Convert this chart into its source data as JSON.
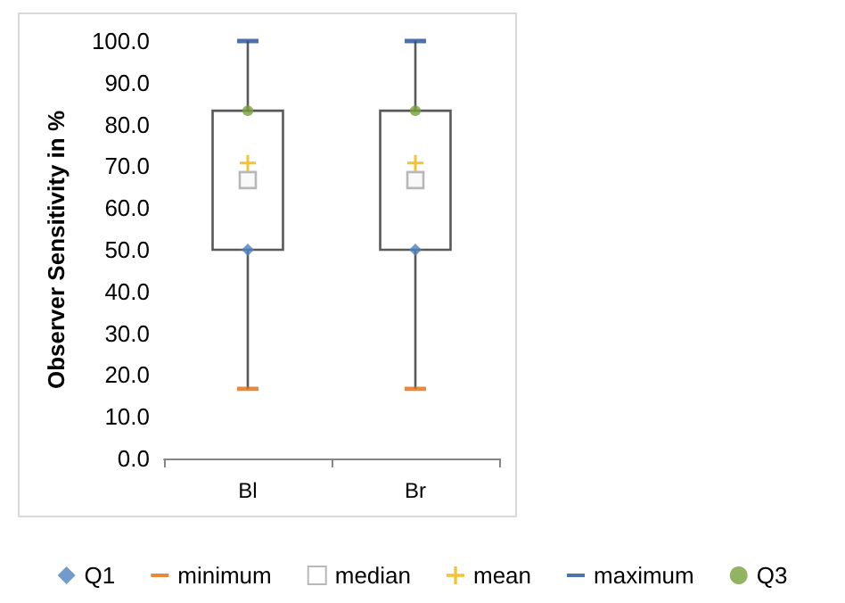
{
  "chart_data": {
    "type": "box",
    "ylabel": "Observer Sensitivity in %",
    "categories": [
      "Bl",
      "Br"
    ],
    "boxes": [
      {
        "low": 16.7,
        "q1": 50,
        "q3": 83.3,
        "high": 100
      },
      {
        "low": 16.7,
        "q1": 50,
        "q3": 83.3,
        "high": 100
      }
    ],
    "color": "#595959",
    "series": [
      {
        "name": "Q1",
        "type": "scatter",
        "marker": "diamond",
        "color": "#4f81bd",
        "x": [
          "Bl",
          "Br"
        ],
        "values": [
          50,
          50
        ]
      },
      {
        "name": "minimum",
        "type": "scatter",
        "color": "#e46c0a",
        "x": [
          "Bl",
          "Br"
        ],
        "values": [
          16.7,
          16.7
        ]
      },
      {
        "name": "median",
        "type": "scatter",
        "marker": "square",
        "color": "#a6a6a6",
        "x": [
          "Bl",
          "Br"
        ],
        "values": [
          66.7,
          66.7
        ]
      },
      {
        "name": "mean",
        "type": "scatter",
        "marker": "cross",
        "color": "#f0b400",
        "x": [
          "Bl",
          "Br"
        ],
        "values": [
          70.8,
          70.8
        ]
      },
      {
        "name": "maximum",
        "type": "scatter",
        "color": "#1f4e99",
        "x": [
          "Bl",
          "Br"
        ],
        "values": [
          100,
          100
        ]
      },
      {
        "name": "Q3",
        "type": "scatter",
        "marker": "circle",
        "color": "#77a03a",
        "x": [
          "Bl",
          "Br"
        ],
        "values": [
          83.3,
          83.3
        ]
      }
    ],
    "ylim": [
      0,
      100
    ],
    "yticks": [
      {
        "value": 0,
        "label": "0.0"
      },
      {
        "value": 10,
        "label": "10.0"
      },
      {
        "value": 20,
        "label": "20.0"
      },
      {
        "value": 30,
        "label": "30.0"
      },
      {
        "value": 40,
        "label": "40.0"
      },
      {
        "value": 50,
        "label": "50.0"
      },
      {
        "value": 60,
        "label": "60.0"
      },
      {
        "value": 70,
        "label": "70.0"
      },
      {
        "value": 80,
        "label": "80.0"
      },
      {
        "value": 90,
        "label": "90.0"
      },
      {
        "value": 100,
        "label": "100.0"
      }
    ],
    "grid": false,
    "legend": "bottom"
  }
}
